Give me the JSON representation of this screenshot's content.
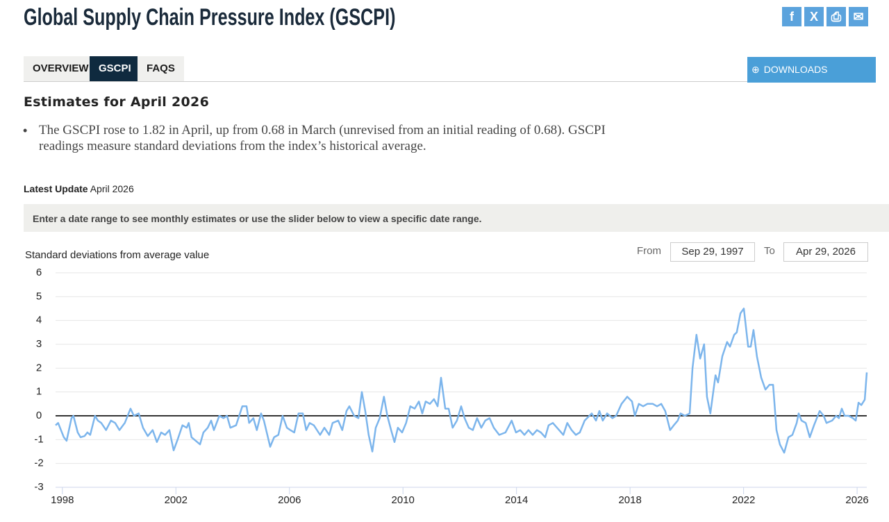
{
  "header": {
    "title": "Global Supply Chain Pressure Index (GSCPI)"
  },
  "tabs": [
    "OVERVIEW",
    "GSCPI",
    "FAQS"
  ],
  "downloads": "DOWNLOADS",
  "estimates": {
    "heading": "Estimates for April 2026",
    "bullet": "The GSCPI rose to 1.82 in April, up from 0.68 in March (unrevised from an initial reading of 0.68). GSCPI readings measure standard deviations from the index’s historical average."
  },
  "latest_update": {
    "label": "Latest Update",
    "value": "April 2026"
  },
  "info_bar": "Enter a date range to see monthly estimates or use the slider below to view a specific date range.",
  "date_range": {
    "from_label": "From",
    "from": "Sep 29, 1997",
    "to_label": "To",
    "to": "Apr 29, 2026"
  },
  "chart_data": {
    "type": "line",
    "y_label": "Standard deviations from average value",
    "color": "#7cb5ec",
    "grid": true,
    "xlim": [
      1997.76,
      2026.34
    ],
    "xticks": [
      1998,
      2002,
      2006,
      2010,
      2014,
      2018,
      2022,
      2026
    ],
    "ylim": [
      -3,
      6
    ],
    "yticks": [
      -3,
      -2,
      -1,
      0,
      1,
      2,
      3,
      4,
      5,
      6
    ],
    "x": [
      1997.76,
      1997.85,
      1998.05,
      1998.15,
      1998.32,
      1998.39,
      1998.54,
      1998.64,
      1998.78,
      1998.88,
      1998.98,
      1999.15,
      1999.25,
      1999.37,
      1999.54,
      1999.71,
      1999.86,
      2000.01,
      2000.2,
      2000.4,
      2000.52,
      2000.69,
      2000.84,
      2001.01,
      2001.18,
      2001.33,
      2001.48,
      2001.62,
      2001.77,
      2001.92,
      2002.06,
      2002.23,
      2002.38,
      2002.45,
      2002.55,
      2002.85,
      2002.97,
      2003.12,
      2003.24,
      2003.34,
      2003.53,
      2003.68,
      2003.8,
      2003.92,
      2004.12,
      2004.34,
      2004.49,
      2004.58,
      2004.73,
      2004.85,
      2005.0,
      2005.1,
      2005.32,
      2005.46,
      2005.61,
      2005.76,
      2005.91,
      2006.03,
      2006.17,
      2006.32,
      2006.47,
      2006.59,
      2006.71,
      2006.86,
      2007.08,
      2007.23,
      2007.4,
      2007.52,
      2007.72,
      2007.86,
      2008.01,
      2008.11,
      2008.28,
      2008.43,
      2008.55,
      2008.67,
      2008.79,
      2008.92,
      2009.04,
      2009.18,
      2009.33,
      2009.45,
      2009.58,
      2009.7,
      2009.82,
      2009.97,
      2010.11,
      2010.26,
      2010.41,
      2010.56,
      2010.68,
      2010.8,
      2010.95,
      2011.09,
      2011.22,
      2011.34,
      2011.49,
      2011.61,
      2011.75,
      2011.9,
      2012.05,
      2012.17,
      2012.32,
      2012.46,
      2012.61,
      2012.76,
      2012.9,
      2013.05,
      2013.2,
      2013.39,
      2013.61,
      2013.83,
      2013.98,
      2014.13,
      2014.28,
      2014.42,
      2014.57,
      2014.72,
      2014.86,
      2015.01,
      2015.13,
      2015.28,
      2015.5,
      2015.65,
      2015.79,
      2015.94,
      2016.09,
      2016.23,
      2016.4,
      2016.65,
      2016.8,
      2016.92,
      2017.04,
      2017.19,
      2017.38,
      2017.51,
      2017.7,
      2017.9,
      2018.07,
      2018.17,
      2018.31,
      2018.46,
      2018.61,
      2018.8,
      2018.95,
      2019.1,
      2019.24,
      2019.41,
      2019.54,
      2019.68,
      2019.78,
      2019.93,
      2020.1,
      2020.2,
      2020.34,
      2020.47,
      2020.61,
      2020.71,
      2020.83,
      2021.01,
      2021.1,
      2021.25,
      2021.42,
      2021.52,
      2021.67,
      2021.76,
      2021.89,
      2022.01,
      2022.16,
      2022.25,
      2022.35,
      2022.47,
      2022.62,
      2022.77,
      2022.91,
      2023.04,
      2023.16,
      2023.28,
      2023.43,
      2023.58,
      2023.72,
      2023.87,
      2023.94,
      2024.04,
      2024.19,
      2024.33,
      2024.48,
      2024.68,
      2024.82,
      2024.92,
      2025.12,
      2025.26,
      2025.36,
      2025.46,
      2025.56,
      2025.7,
      2025.85,
      2025.95,
      2026.05,
      2026.15,
      2026.27,
      2026.34
    ],
    "values": [
      -0.4,
      -0.3,
      -0.9,
      -1.05,
      -0.1,
      0.0,
      -0.7,
      -0.9,
      -0.85,
      -0.7,
      -0.8,
      0.0,
      -0.2,
      -0.3,
      -0.6,
      -0.2,
      -0.3,
      -0.6,
      -0.3,
      0.3,
      0.0,
      0.1,
      -0.5,
      -0.85,
      -0.6,
      -1.1,
      -0.7,
      -0.8,
      -0.6,
      -1.45,
      -1.0,
      -0.4,
      -0.5,
      -0.3,
      -0.9,
      -1.2,
      -0.7,
      -0.5,
      -0.2,
      -0.6,
      0.0,
      -0.1,
      0.0,
      -0.5,
      -0.4,
      0.4,
      0.4,
      -0.3,
      -0.1,
      -0.6,
      0.1,
      -0.2,
      -1.3,
      -0.9,
      -0.8,
      0.0,
      -0.5,
      -0.6,
      -0.7,
      0.1,
      0.1,
      -0.6,
      -0.3,
      -0.4,
      -0.8,
      -0.5,
      -0.8,
      -0.3,
      -0.2,
      -0.6,
      0.2,
      0.4,
      0.0,
      -0.1,
      1.0,
      0.2,
      -0.8,
      -1.5,
      -0.5,
      -0.1,
      0.8,
      0.0,
      -0.6,
      -1.1,
      -0.5,
      -0.7,
      -0.3,
      0.4,
      0.3,
      0.6,
      0.1,
      0.6,
      0.5,
      0.7,
      0.4,
      1.6,
      0.3,
      0.3,
      -0.5,
      -0.2,
      0.4,
      -0.1,
      -0.5,
      -0.6,
      -0.1,
      -0.5,
      -0.2,
      -0.1,
      -0.5,
      -0.8,
      -0.7,
      -0.2,
      -0.7,
      -0.6,
      -0.8,
      -0.6,
      -0.8,
      -0.6,
      -0.7,
      -0.9,
      -0.4,
      -0.3,
      -0.6,
      -0.8,
      -0.3,
      -0.6,
      -0.8,
      -0.7,
      -0.2,
      0.1,
      -0.2,
      0.2,
      -0.2,
      0.1,
      -0.1,
      0.0,
      0.5,
      0.8,
      0.6,
      0.0,
      0.5,
      0.4,
      0.5,
      0.5,
      0.4,
      0.5,
      0.2,
      -0.6,
      -0.4,
      -0.2,
      0.1,
      0.0,
      0.1,
      2.0,
      3.4,
      2.4,
      3.0,
      0.8,
      0.1,
      1.7,
      1.4,
      2.5,
      3.1,
      2.9,
      3.4,
      3.5,
      4.3,
      4.5,
      2.9,
      2.9,
      3.6,
      2.5,
      1.6,
      1.1,
      1.3,
      1.3,
      -0.6,
      -1.2,
      -1.55,
      -0.9,
      -0.8,
      -0.3,
      0.1,
      -0.2,
      -0.3,
      -0.9,
      -0.4,
      0.2,
      0.0,
      -0.3,
      -0.2,
      0.0,
      -0.1,
      0.3,
      0.0,
      0.0,
      -0.1,
      -0.2,
      0.55,
      0.45,
      0.68,
      1.82
    ]
  }
}
